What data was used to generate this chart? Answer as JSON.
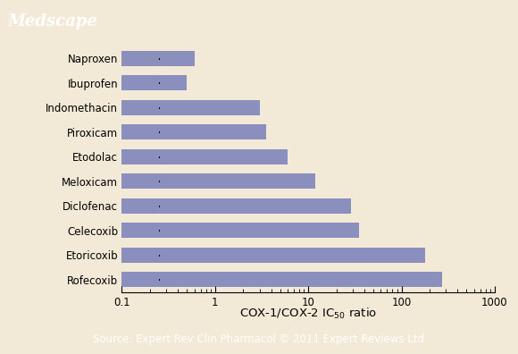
{
  "drugs": [
    "Rofecoxib",
    "Etoricoxib",
    "Celecoxib",
    "Diclofenac",
    "Meloxicam",
    "Etodolac",
    "Piroxicam",
    "Indomethacin",
    "Ibuprofen",
    "Naproxen"
  ],
  "values": [
    272.0,
    180.0,
    35.0,
    29.0,
    12.0,
    6.0,
    3.5,
    3.0,
    0.5,
    0.6
  ],
  "bar_color": "#8b8fbe",
  "bg_color": "#f2ead6",
  "chart_bg": "#f2ead6",
  "header_color": "#2b78b4",
  "footer_color": "#2b78b4",
  "title_text": "Medscape",
  "xlim_left": 0.1,
  "xlim_right": 1000,
  "footer_text": "Source: Expert Rev Clin Pharmacol © 2011 Expert Reviews Ltd",
  "header_fontsize": 13,
  "label_fontsize": 8.5,
  "xlabel_fontsize": 9.5,
  "footer_fontsize": 8.5,
  "tick_label_fontsize": 8.5
}
